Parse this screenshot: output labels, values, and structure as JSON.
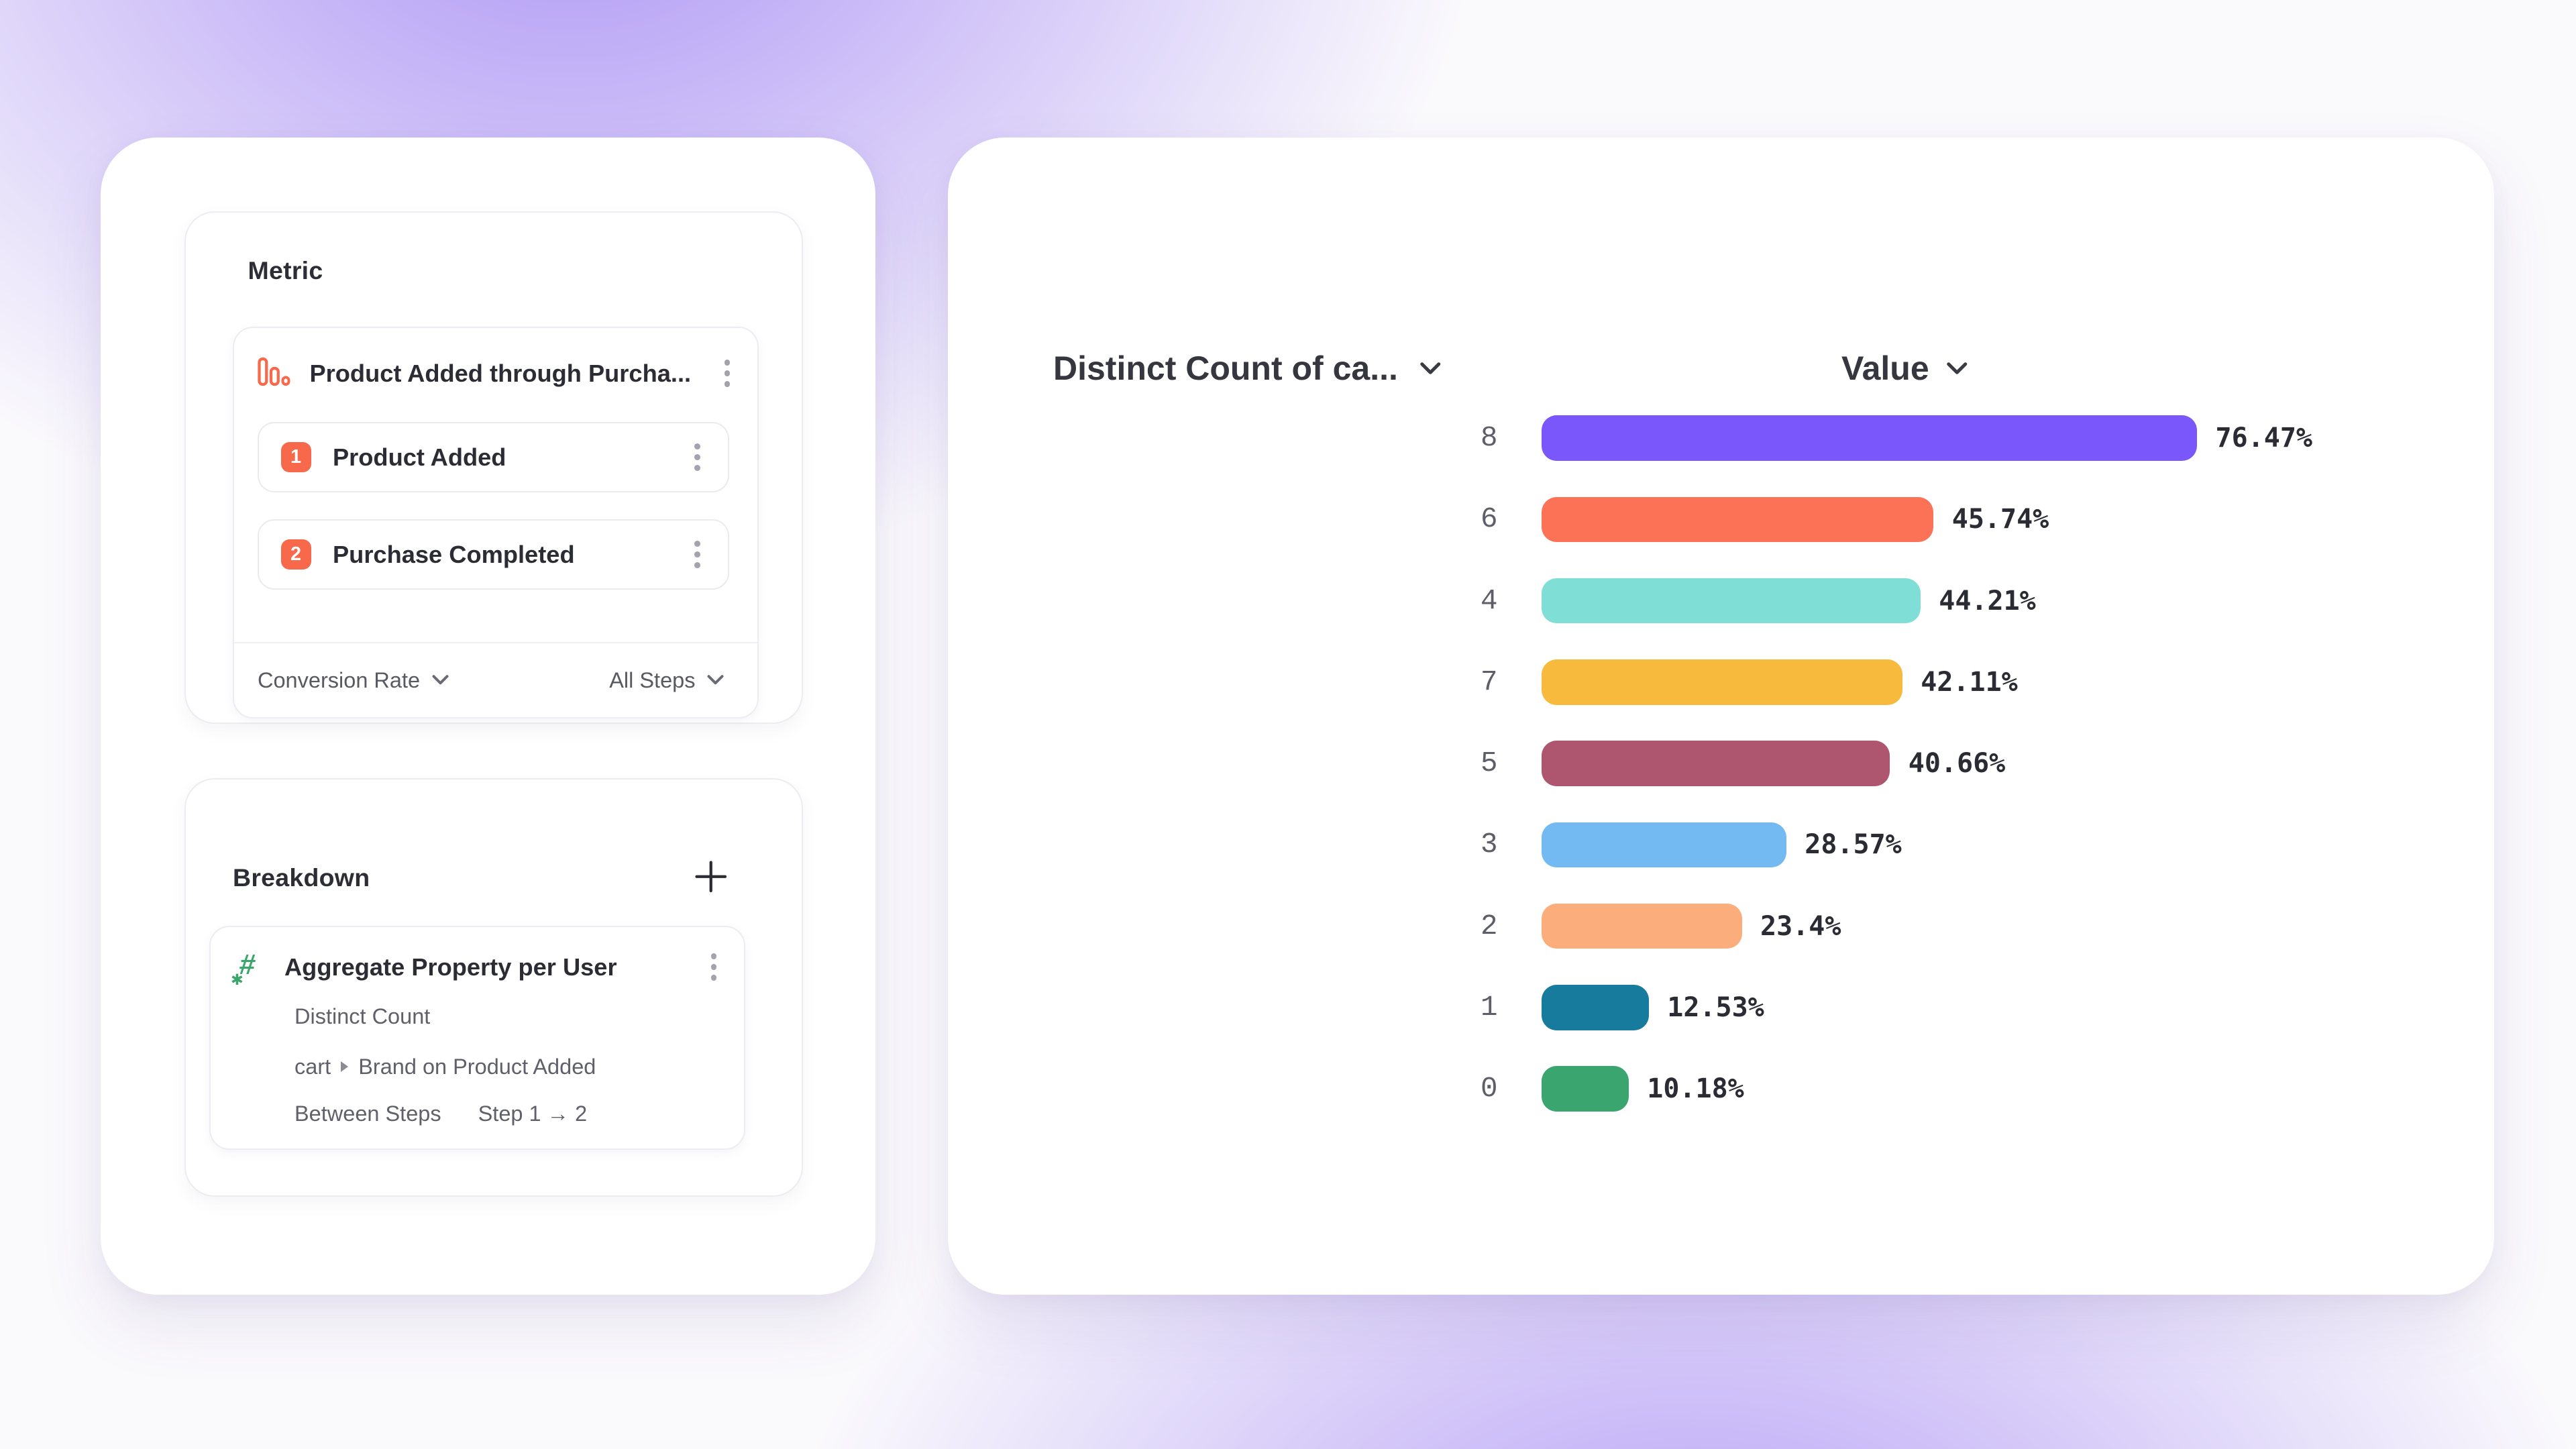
{
  "icons": {
    "hash_glyph": "#",
    "asterisk_glyph": "✱"
  },
  "metric_panel": {
    "title": "Metric",
    "item": {
      "name": "Product Added through Purcha...",
      "steps": [
        {
          "index": "1",
          "label": "Product Added"
        },
        {
          "index": "2",
          "label": "Purchase Completed"
        }
      ],
      "conversion_label": "Conversion Rate",
      "steps_filter_label": "All Steps"
    }
  },
  "breakdown_panel": {
    "title": "Breakdown",
    "item": {
      "name": "Aggregate Property per User",
      "aggregation": "Distinct Count",
      "property_object": "cart",
      "property_detail": "Brand on Product Added",
      "between_label": "Between Steps",
      "step_range": "Step 1 → 2"
    }
  },
  "chart": {
    "column_headers": {
      "category": "Distinct Count of ca...",
      "value": "Value"
    }
  },
  "chart_data": {
    "type": "bar",
    "orientation": "horizontal",
    "title": "",
    "xlabel": "Value",
    "ylabel": "Distinct Count of ca...",
    "categories": [
      "8",
      "6",
      "4",
      "7",
      "5",
      "3",
      "2",
      "1",
      "0"
    ],
    "values": [
      76.47,
      45.74,
      44.21,
      42.11,
      40.66,
      28.57,
      23.4,
      12.53,
      10.18
    ],
    "value_labels": [
      "76.47%",
      "45.74%",
      "44.21%",
      "42.11%",
      "40.66%",
      "28.57%",
      "23.4%",
      "12.53%",
      "10.18%"
    ],
    "bar_colors": [
      "#7A57FA",
      "#FC7257",
      "#7FDED5",
      "#F8BA3C",
      "#AE5570",
      "#74BAF2",
      "#FBAE7B",
      "#177B9D",
      "#3BA56F"
    ],
    "unit": "%",
    "axis": {
      "gridlines": false,
      "x_ticks_visible": false
    },
    "legend": "none"
  }
}
